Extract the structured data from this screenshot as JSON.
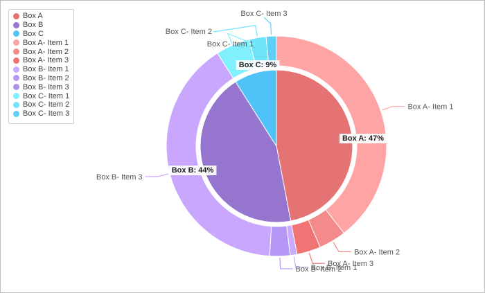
{
  "chart_data": {
    "type": "pie",
    "subtype": "nested-donut",
    "inner": [
      {
        "name": "Box A",
        "value": 47,
        "label": "Box A:  47%",
        "color": "#e57373"
      },
      {
        "name": "Box B",
        "value": 44,
        "label": "Box B:  44%",
        "color": "#9575cd"
      },
      {
        "name": "Box C",
        "value": 9,
        "label": "Box C:  9%",
        "color": "#4fc3f7"
      }
    ],
    "outer": [
      {
        "name": "Box A- Item 1",
        "parent": "Box A",
        "value": 39.5,
        "color": "#ffa4a4"
      },
      {
        "name": "Box A- Item 2",
        "parent": "Box A",
        "value": 4,
        "color": "#f48b8b"
      },
      {
        "name": "Box A- Item 3",
        "parent": "Box A",
        "value": 3.5,
        "color": "#f07474"
      },
      {
        "name": "Box B- Item 1",
        "parent": "Box B",
        "value": 1,
        "color": "#c8aaff"
      },
      {
        "name": "Box B- Item 2",
        "parent": "Box B",
        "value": 3,
        "color": "#b597f6"
      },
      {
        "name": "Box B- Item 3",
        "parent": "Box B",
        "value": 40,
        "color": "#c9a7ff"
      },
      {
        "name": "Box C- Item 1",
        "parent": "Box C",
        "value": 5,
        "color": "#80f0ff"
      },
      {
        "name": "Box C- Item 2",
        "parent": "Box C",
        "value": 2.5,
        "color": "#6fe3fa"
      },
      {
        "name": "Box C- Item 3",
        "parent": "Box C",
        "value": 1.5,
        "color": "#5ecff6"
      }
    ],
    "legend": {
      "position": "top-left",
      "items": [
        {
          "label": "Box A",
          "color": "#e57373"
        },
        {
          "label": "Box B",
          "color": "#9575cd"
        },
        {
          "label": "Box C",
          "color": "#4fc3f7"
        },
        {
          "label": "Box A- Item 1",
          "color": "#ffa4a4"
        },
        {
          "label": "Box A- Item 2",
          "color": "#f48b8b"
        },
        {
          "label": "Box A- Item 3",
          "color": "#f07474"
        },
        {
          "label": "Box B- Item 1",
          "color": "#c8aaff"
        },
        {
          "label": "Box B- Item 2",
          "color": "#b597f6"
        },
        {
          "label": "Box B- Item 3",
          "color": "#ab92e6"
        },
        {
          "label": "Box C- Item 1",
          "color": "#80f0ff"
        },
        {
          "label": "Box C- Item 2",
          "color": "#6fe3fa"
        },
        {
          "label": "Box C- Item 3",
          "color": "#5ecff6"
        }
      ]
    }
  }
}
